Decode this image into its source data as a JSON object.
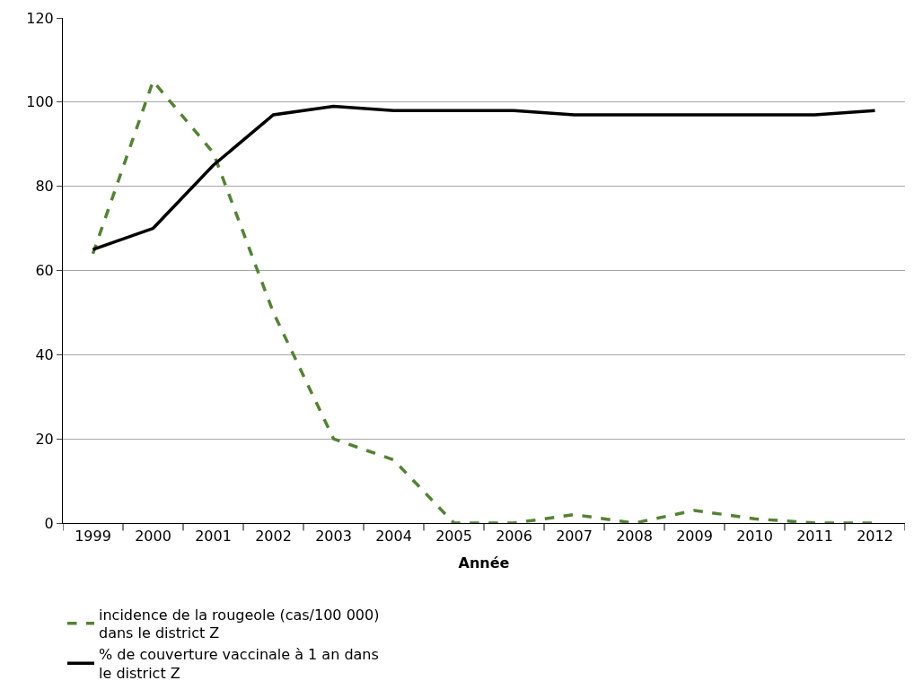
{
  "chart_data": {
    "type": "line",
    "xlabel": "Année",
    "categories": [
      "1999",
      "2000",
      "2001",
      "2002",
      "2003",
      "2004",
      "2005",
      "2006",
      "2007",
      "2008",
      "2009",
      "2010",
      "2011",
      "2012"
    ],
    "series": [
      {
        "name": "incidence de la rougeole (cas/100 000) dans le district Z",
        "color": "#548235",
        "line_style": "dashed",
        "values": [
          64,
          105,
          88,
          50,
          20,
          15,
          0,
          0,
          2,
          0,
          3,
          1,
          0,
          0
        ]
      },
      {
        "name": "% de couverture vaccinale à 1 an dans le district Z",
        "color": "#000000",
        "line_style": "solid",
        "values": [
          65,
          70,
          85,
          97,
          99,
          98,
          98,
          98,
          97,
          97,
          97,
          97,
          97,
          98
        ]
      }
    ],
    "ylim": [
      0,
      120
    ],
    "yticks": [
      0,
      20,
      40,
      60,
      80,
      100,
      120
    ],
    "grid": "y",
    "legend": "bottom",
    "marker": "none"
  }
}
